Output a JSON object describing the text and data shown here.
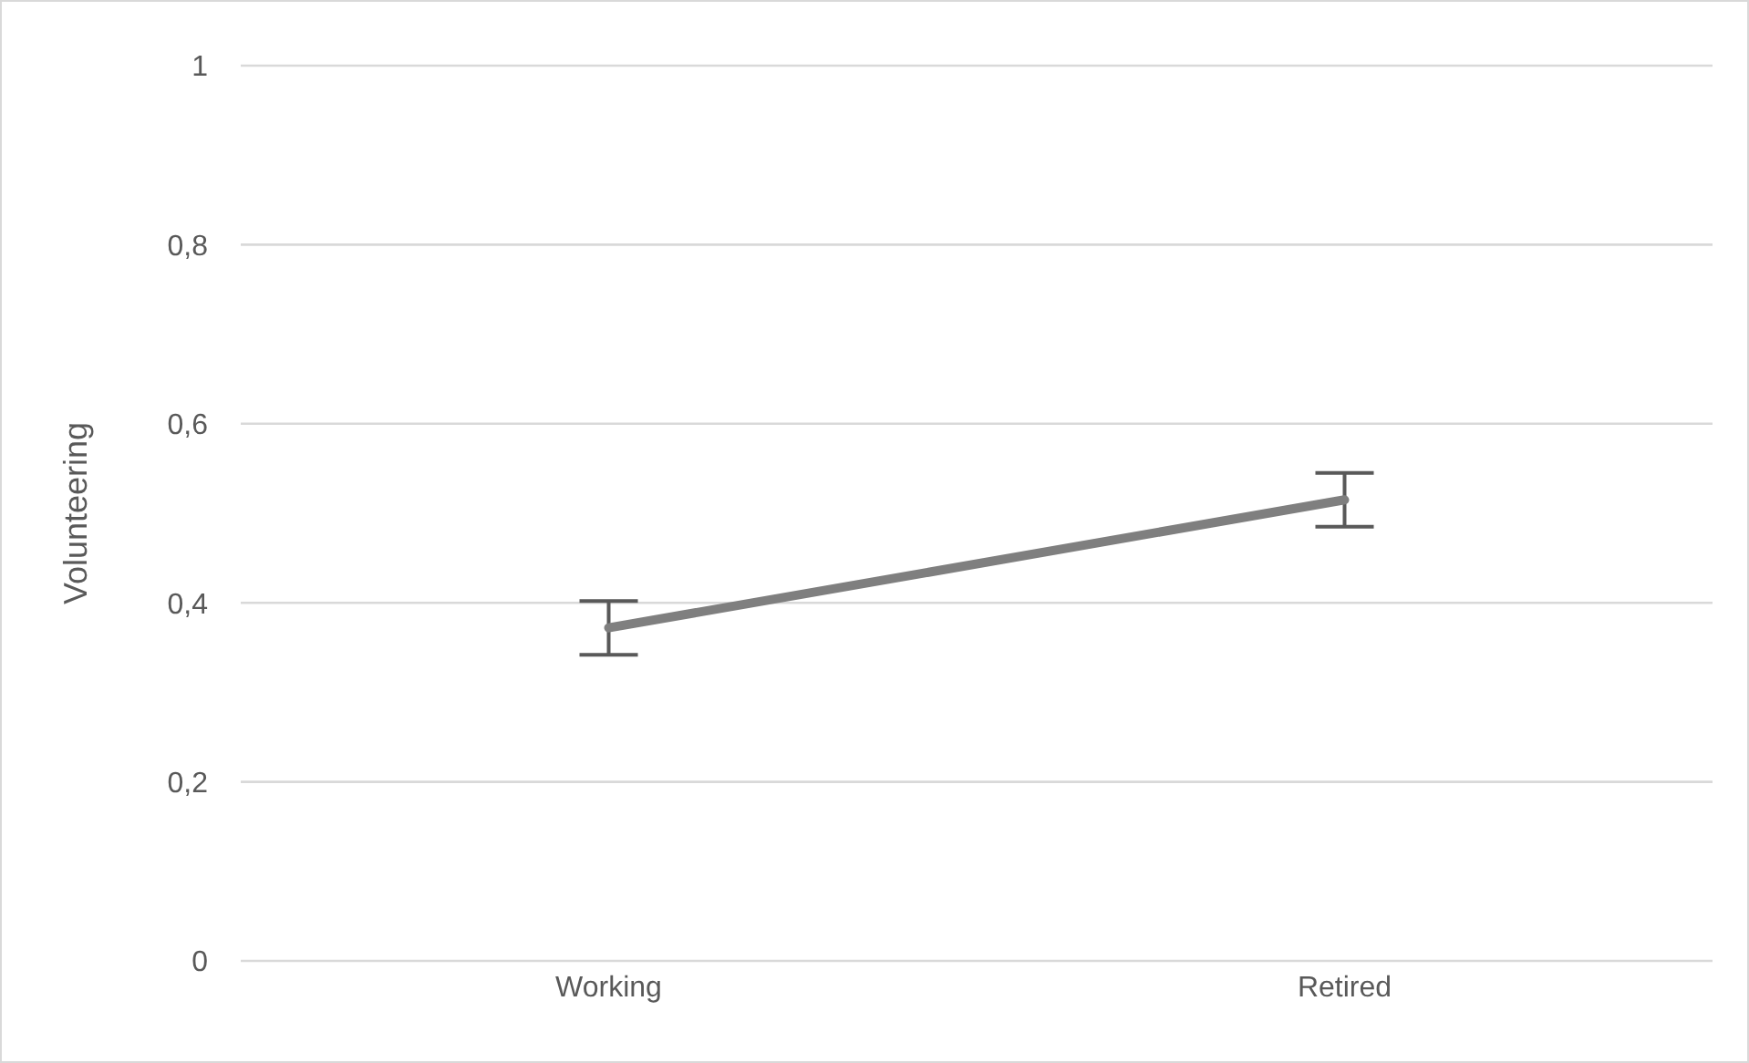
{
  "chart_data": {
    "type": "line",
    "ylabel": "Volunteering",
    "categories": [
      "Working",
      "Retired"
    ],
    "series": [
      {
        "color": "#7f7f7f",
        "values": [
          0.372,
          0.515
        ],
        "errors": [
          0.03,
          0.03
        ]
      }
    ],
    "ylim": [
      0,
      1
    ],
    "yticks": [
      {
        "value": 0,
        "label": "0"
      },
      {
        "value": 0.2,
        "label": "0,2"
      },
      {
        "value": 0.4,
        "label": "0,4"
      },
      {
        "value": 0.6,
        "label": "0,6"
      },
      {
        "value": 0.8,
        "label": "0,8"
      },
      {
        "value": 1,
        "label": "1"
      }
    ],
    "grid": "y",
    "legend": false,
    "marker": "none",
    "line_style": "solid"
  }
}
